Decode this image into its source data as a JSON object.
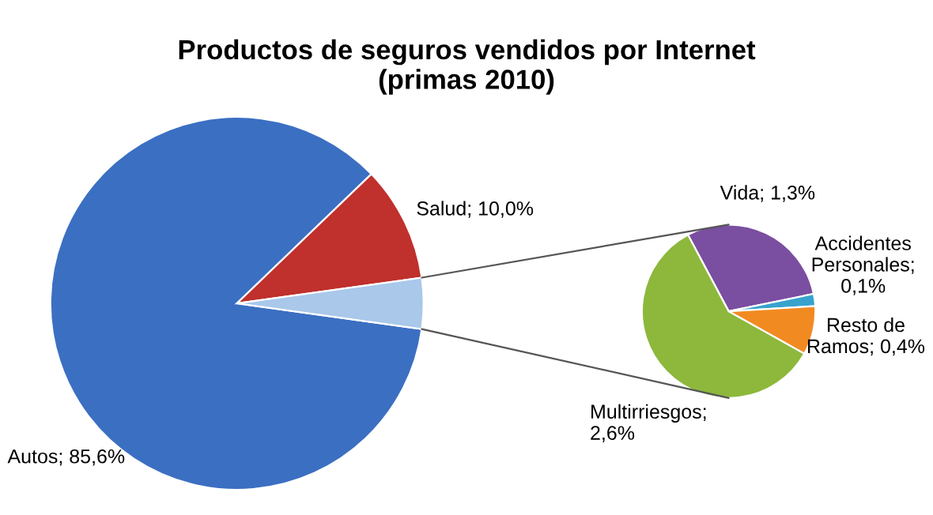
{
  "chart_data": [
    {
      "type": "pie",
      "title": "Productos de seguros vendidos por Internet\n(primas 2010)",
      "categories": [
        "Autos",
        "Salud",
        null
      ],
      "values": [
        85.6,
        10.0,
        4.4
      ],
      "colors": [
        "#3b6fc2",
        "#c0302c",
        "#a9c8ea"
      ],
      "value_labels": [
        "; 85,6%",
        "; 10,0%",
        null
      ]
    },
    {
      "type": "pie",
      "categories": [
        "Vida",
        "Accidentes Personales",
        "Resto de Ramos",
        "Multirriesgos"
      ],
      "values": [
        1.3,
        0.1,
        0.4,
        2.6
      ],
      "colors": [
        "#7a4ea0",
        "#37a3cc",
        "#f28a22",
        "#8db83c"
      ],
      "value_labels": [
        "; 1,3%",
        "; 0,1%",
        "; 0,4%",
        "; 2,6%"
      ]
    }
  ]
}
